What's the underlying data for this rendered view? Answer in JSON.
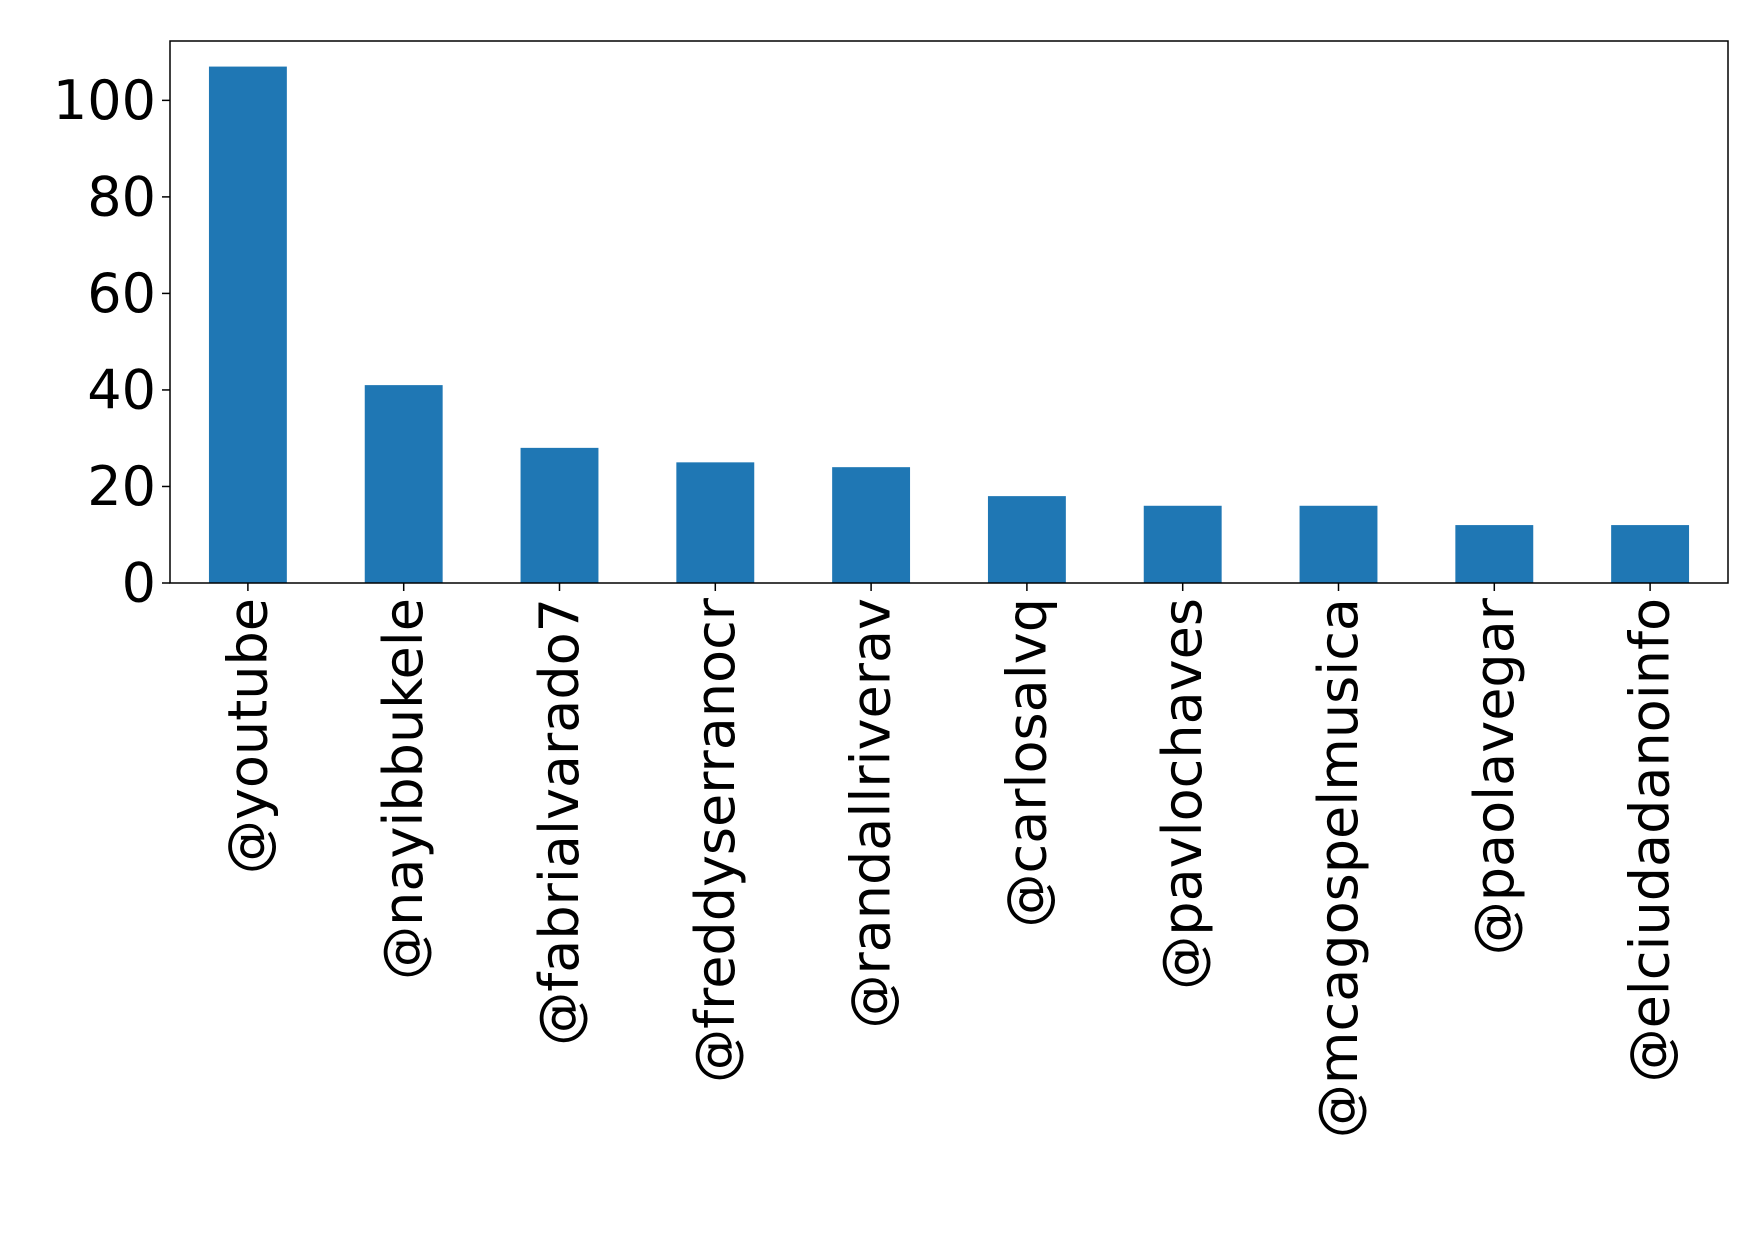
{
  "chart_data": {
    "type": "bar",
    "title": "",
    "xlabel": "",
    "ylabel": "",
    "categories": [
      "@youtube",
      "@nayibbukele",
      "@fabrialvarado7",
      "@freddyserranocr",
      "@randallriverav",
      "@carlosalvq",
      "@pavlochaves",
      "@mcagospelmusica",
      "@paolavegar",
      "@elciudadanoinfo"
    ],
    "values": [
      107,
      41,
      28,
      25,
      24,
      18,
      16,
      16,
      12,
      12
    ],
    "ylim": [
      0,
      112.3
    ],
    "yticks": [
      0,
      20,
      40,
      60,
      80,
      100
    ],
    "grid": false,
    "legend": "none",
    "colors": {
      "bar": "#1f77b4",
      "axis": "#000000"
    }
  }
}
